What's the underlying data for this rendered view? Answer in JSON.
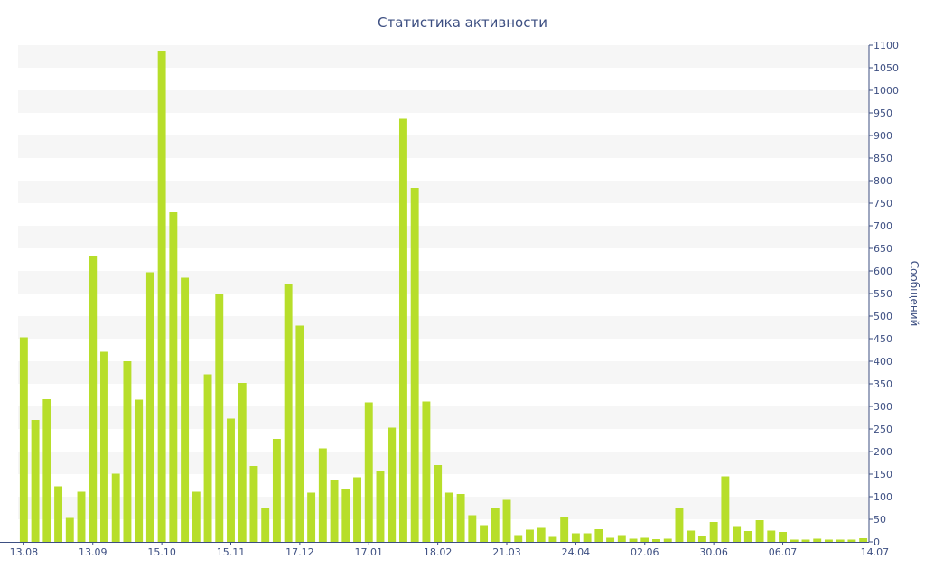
{
  "chart_data": {
    "type": "bar",
    "title": "Статистика активности",
    "ylabel": "Сообщений",
    "xlabel": "",
    "ylim": [
      0,
      1100
    ],
    "y_ticks": [
      0,
      50,
      100,
      150,
      200,
      250,
      300,
      350,
      400,
      450,
      500,
      550,
      600,
      650,
      700,
      750,
      800,
      850,
      900,
      950,
      1000,
      1050,
      1100
    ],
    "x_tick_labels": [
      "13.08",
      "13.09",
      "15.10",
      "15.11",
      "17.12",
      "17.01",
      "18.02",
      "21.03",
      "24.04",
      "02.06",
      "30.06",
      "06.07",
      "14.07"
    ],
    "x_tick_index": [
      0,
      6,
      12,
      18,
      24,
      30,
      36,
      42,
      48,
      54,
      60,
      66,
      74
    ],
    "grid": "horizontal bands",
    "bar_color": "#b7de2a",
    "values": [
      453,
      270,
      316,
      123,
      53,
      111,
      633,
      421,
      151,
      400,
      315,
      597,
      1088,
      730,
      585,
      111,
      371,
      550,
      273,
      352,
      168,
      75,
      228,
      570,
      479,
      109,
      207,
      137,
      117,
      143,
      309,
      156,
      253,
      937,
      784,
      311,
      170,
      109,
      106,
      59,
      37,
      74,
      93,
      15,
      27,
      31,
      11,
      56,
      19,
      19,
      28,
      9,
      15,
      7,
      9,
      6,
      7,
      75,
      25,
      12,
      44,
      145,
      35,
      24,
      48,
      25,
      22,
      5,
      5,
      7,
      5,
      5,
      5,
      8
    ]
  }
}
